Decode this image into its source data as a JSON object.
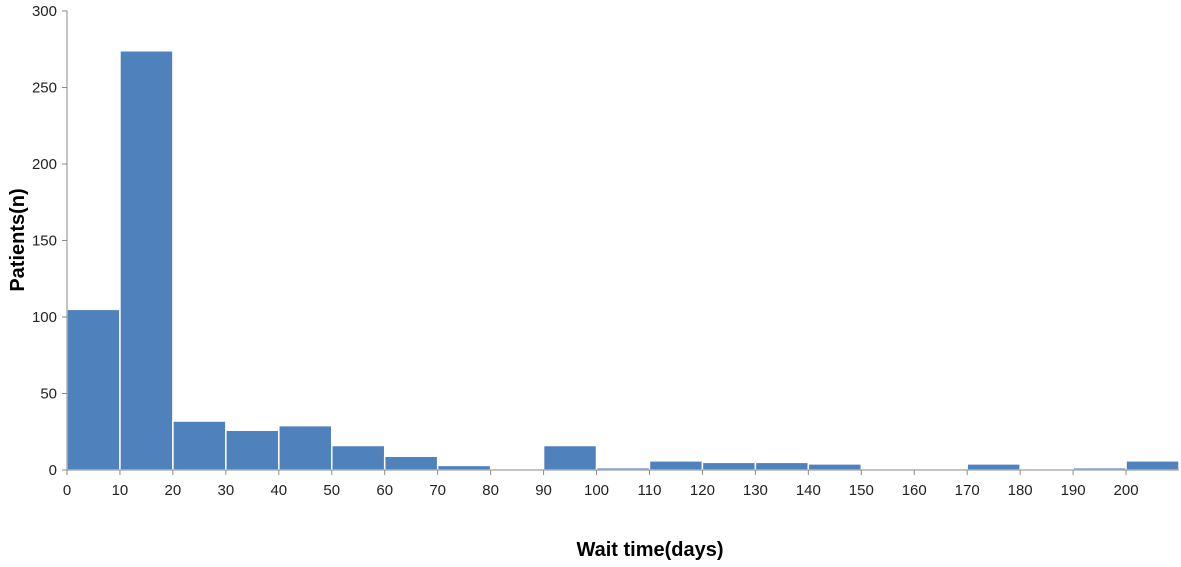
{
  "chart_data": {
    "type": "bar",
    "title": "",
    "xlabel": "Wait time(days)",
    "ylabel": "Patients(n)",
    "ylim": [
      0,
      300
    ],
    "yticks": [
      0,
      50,
      100,
      150,
      200,
      250,
      300
    ],
    "xticks": [
      0,
      10,
      20,
      30,
      40,
      50,
      60,
      70,
      80,
      90,
      100,
      110,
      120,
      130,
      140,
      150,
      160,
      170,
      180,
      190,
      200
    ],
    "bin_width": 10,
    "x_range": [
      0,
      210
    ],
    "bar_color": "#4f81bd",
    "grid": false,
    "bins": [
      {
        "start": 0,
        "end": 10,
        "value": 105
      },
      {
        "start": 10,
        "end": 20,
        "value": 274
      },
      {
        "start": 20,
        "end": 30,
        "value": 32
      },
      {
        "start": 30,
        "end": 40,
        "value": 26
      },
      {
        "start": 40,
        "end": 50,
        "value": 29
      },
      {
        "start": 50,
        "end": 60,
        "value": 16
      },
      {
        "start": 60,
        "end": 70,
        "value": 9
      },
      {
        "start": 70,
        "end": 80,
        "value": 3
      },
      {
        "start": 80,
        "end": 90,
        "value": 0.5
      },
      {
        "start": 90,
        "end": 100,
        "value": 16
      },
      {
        "start": 100,
        "end": 110,
        "value": 1.5
      },
      {
        "start": 110,
        "end": 120,
        "value": 6
      },
      {
        "start": 120,
        "end": 130,
        "value": 5
      },
      {
        "start": 130,
        "end": 140,
        "value": 5
      },
      {
        "start": 140,
        "end": 150,
        "value": 4
      },
      {
        "start": 150,
        "end": 160,
        "value": 0
      },
      {
        "start": 160,
        "end": 170,
        "value": 0
      },
      {
        "start": 170,
        "end": 180,
        "value": 4
      },
      {
        "start": 180,
        "end": 190,
        "value": 0.5
      },
      {
        "start": 190,
        "end": 200,
        "value": 1.5
      },
      {
        "start": 200,
        "end": 210,
        "value": 6
      }
    ]
  }
}
